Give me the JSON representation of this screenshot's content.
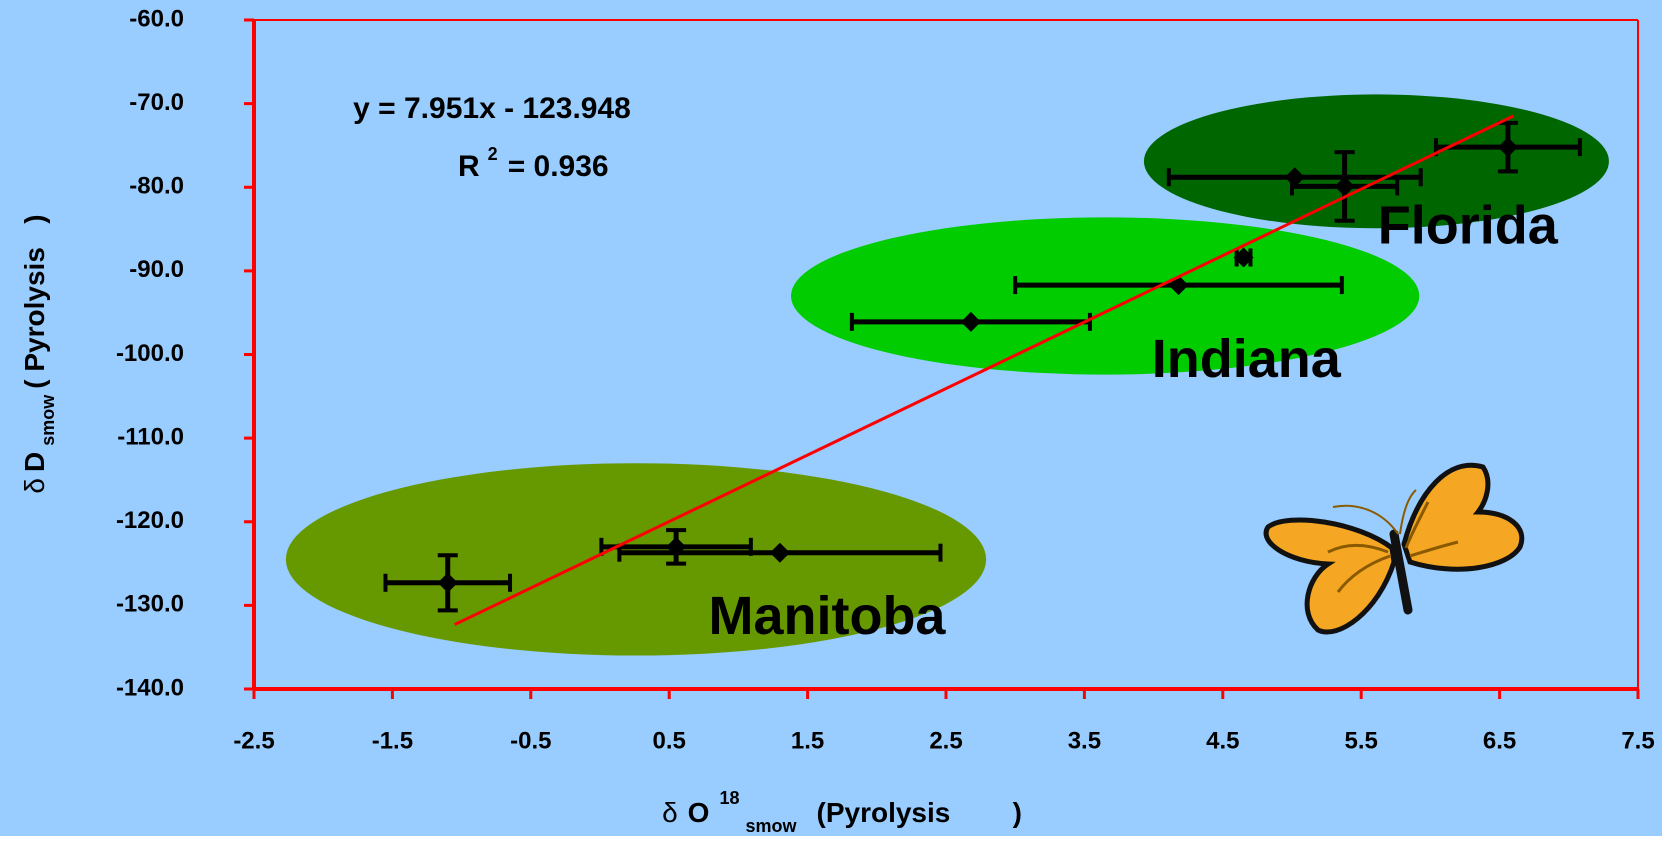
{
  "chart_data": {
    "type": "scatter",
    "background": "#99ccff",
    "axis_color": "#ff0000",
    "x_label": {
      "symbol": "δ",
      "main": "O",
      "sup": "18",
      "sub": "smow",
      "rest": "(Pyrolysis        )"
    },
    "y_label": {
      "symbol": "δ",
      "main": "D",
      "sub": "smow",
      "rest": "( Pyrolysis   )"
    },
    "xlim": [
      -2.5,
      7.5
    ],
    "xticks": [
      -2.5,
      -1.5,
      -0.5,
      0.5,
      1.5,
      2.5,
      3.5,
      4.5,
      5.5,
      6.5,
      7.5
    ],
    "ylim": [
      -140,
      -60
    ],
    "yticks": [
      {
        "value": -60,
        "label": "-60.0"
      },
      {
        "value": -70,
        "label": "-70.0"
      },
      {
        "value": -80,
        "label": "-80.0"
      },
      {
        "value": -90,
        "label": "-90.0"
      },
      {
        "value": -100,
        "label": "-100.0"
      },
      {
        "value": -110,
        "label": "-110.0"
      },
      {
        "value": -120,
        "label": "-120.0"
      },
      {
        "value": -130,
        "label": "-130.0"
      },
      {
        "value": -140,
        "label": "-140.0"
      }
    ],
    "regions": [
      {
        "name": "Manitoba",
        "color": "#669900",
        "x": 0.26,
        "y": -124.5,
        "rx": 2.53,
        "ry": 11.5,
        "label_x": 1.64,
        "label_y": -131.7
      },
      {
        "name": "Indiana",
        "color": "#00cc00",
        "x": 3.65,
        "y": -93,
        "rx": 2.27,
        "ry": 9.4,
        "label_x": 4.67,
        "label_y": -101
      },
      {
        "name": "Florida",
        "color": "#006600",
        "x": 5.61,
        "y": -76.9,
        "rx": 1.68,
        "ry": 8.0,
        "label_x": 6.27,
        "label_y": -85
      }
    ],
    "series": [
      {
        "color": "#000000",
        "x": [
          -1.1,
          0.55,
          1.3,
          2.68,
          4.18,
          4.65,
          5.02,
          5.38,
          6.56
        ],
        "values": [
          -127.3,
          -123.0,
          -123.7,
          -96.1,
          -91.7,
          -88.4,
          -78.8,
          -79.9,
          -75.2
        ],
        "xerr": [
          0.45,
          0.54,
          1.16,
          0.86,
          1.18,
          0.05,
          0.91,
          0.38,
          0.52
        ],
        "yerr": [
          3.3,
          2.0,
          null,
          null,
          null,
          null,
          null,
          4.1,
          2.9
        ]
      }
    ],
    "trendline": {
      "color": "#ff0000",
      "slope": 7.951,
      "intercept": -123.948,
      "xrange": [
        -1.05,
        6.6
      ]
    },
    "annotation": {
      "equation": "y = 7.951x - 123.948",
      "r": "R",
      "r_sup": "2",
      "r_value": "= 0.936"
    }
  }
}
